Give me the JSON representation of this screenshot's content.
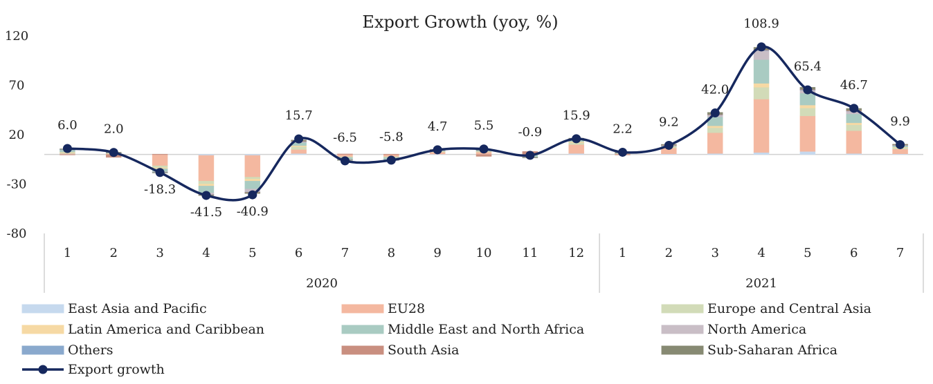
{
  "chart_data": {
    "type": "bar",
    "title": "Export Growth (yoy, %)",
    "xlabel": "",
    "ylabel": "",
    "ylim": [
      -80,
      120
    ],
    "y_ticks": [
      120,
      70,
      20,
      -30,
      -80
    ],
    "grid": false,
    "legend_position": "bottom",
    "categories": [
      "1",
      "2",
      "3",
      "4",
      "5",
      "6",
      "7",
      "8",
      "9",
      "10",
      "11",
      "12",
      "1",
      "2",
      "3",
      "4",
      "5",
      "6",
      "7"
    ],
    "groups": [
      {
        "label": "2020",
        "count": 12
      },
      {
        "label": "2021",
        "count": 7
      }
    ],
    "series": [
      {
        "name": "East Asia and Pacific",
        "color": "#c6d9ee",
        "values": [
          0.5,
          0.3,
          -0.5,
          -1,
          -1,
          1,
          -0.3,
          -0.3,
          0.3,
          0.3,
          -0.3,
          1,
          0.3,
          0.5,
          1,
          2,
          3,
          1,
          0.5
        ]
      },
      {
        "name": "EU28",
        "color": "#f4b8a0",
        "values": [
          0.5,
          0.4,
          -11,
          -26,
          -22,
          4,
          -2,
          -2,
          2,
          2,
          0,
          9,
          0.5,
          6,
          21,
          54,
          36,
          23,
          5
        ]
      },
      {
        "name": "Europe and Central Asia",
        "color": "#d2dbb8",
        "values": [
          1,
          0.3,
          -2,
          -3,
          -2,
          3,
          -0.5,
          -0.5,
          0.5,
          0.5,
          -0.2,
          2,
          0.3,
          1,
          5,
          12,
          8,
          6,
          1.5
        ]
      },
      {
        "name": "Latin America and Caribbean",
        "color": "#f6d9a4",
        "values": [
          0.5,
          0.2,
          -1,
          -2,
          -2,
          1,
          -0.3,
          -0.3,
          0.3,
          0.3,
          -0.1,
          1,
          0.2,
          0.5,
          2,
          4,
          3,
          2,
          0.5
        ]
      },
      {
        "name": "Middle East and North Africa",
        "color": "#a9cbc2",
        "values": [
          2,
          0.5,
          -3,
          -7,
          -8,
          3,
          -2,
          -2,
          1,
          1,
          -2,
          2,
          0.3,
          1,
          9,
          24,
          12,
          9,
          1.5
        ]
      },
      {
        "name": "North America",
        "color": "#c9bec6",
        "values": [
          0.5,
          0.2,
          -0.5,
          -1.5,
          -3,
          1,
          -0.3,
          -0.3,
          0.3,
          0.3,
          -0.2,
          0.5,
          0.2,
          0.3,
          2,
          9,
          3,
          3,
          0.5
        ]
      },
      {
        "name": "Others",
        "color": "#8aa9cd",
        "values": [
          0.2,
          0.1,
          -0.2,
          -0.3,
          -0.3,
          0.3,
          -0.1,
          -0.1,
          0.1,
          0.1,
          -0.1,
          0.2,
          0.1,
          0.1,
          0.3,
          0.5,
          0.5,
          0.3,
          0.1
        ]
      },
      {
        "name": "South Asia",
        "color": "#c98f80",
        "values": [
          -0.5,
          -3,
          0.3,
          -0.3,
          -0.3,
          0.3,
          0.5,
          0.3,
          0.3,
          -2,
          3,
          0.3,
          -0.3,
          0.3,
          0.3,
          0.5,
          0.5,
          0.3,
          0.3
        ]
      },
      {
        "name": "Sub-Saharan Africa",
        "color": "#878a73",
        "values": [
          0.5,
          0.3,
          -0.3,
          -0.5,
          -1,
          1,
          -0.3,
          -0.3,
          0.3,
          0.3,
          -0.3,
          0.5,
          0.2,
          0.5,
          2,
          2.5,
          2,
          2,
          0.5
        ]
      }
    ],
    "line": {
      "name": "Export growth",
      "color": "#16285e",
      "values": [
        6.0,
        2.0,
        -18.3,
        -41.5,
        -40.9,
        15.7,
        -6.5,
        -5.8,
        4.7,
        5.5,
        -0.9,
        15.9,
        2.2,
        9.2,
        42.0,
        108.9,
        65.4,
        46.7,
        9.9
      ],
      "labels": [
        "6.0",
        "2.0",
        "-18.3",
        "-41.5",
        "-40.9",
        "15.7",
        "-6.5",
        "-5.8",
        "4.7",
        "5.5",
        "-0.9",
        "15.9",
        "2.2",
        "9.2",
        "42.0",
        "108.9",
        "65.4",
        "46.7",
        "9.9"
      ]
    }
  }
}
